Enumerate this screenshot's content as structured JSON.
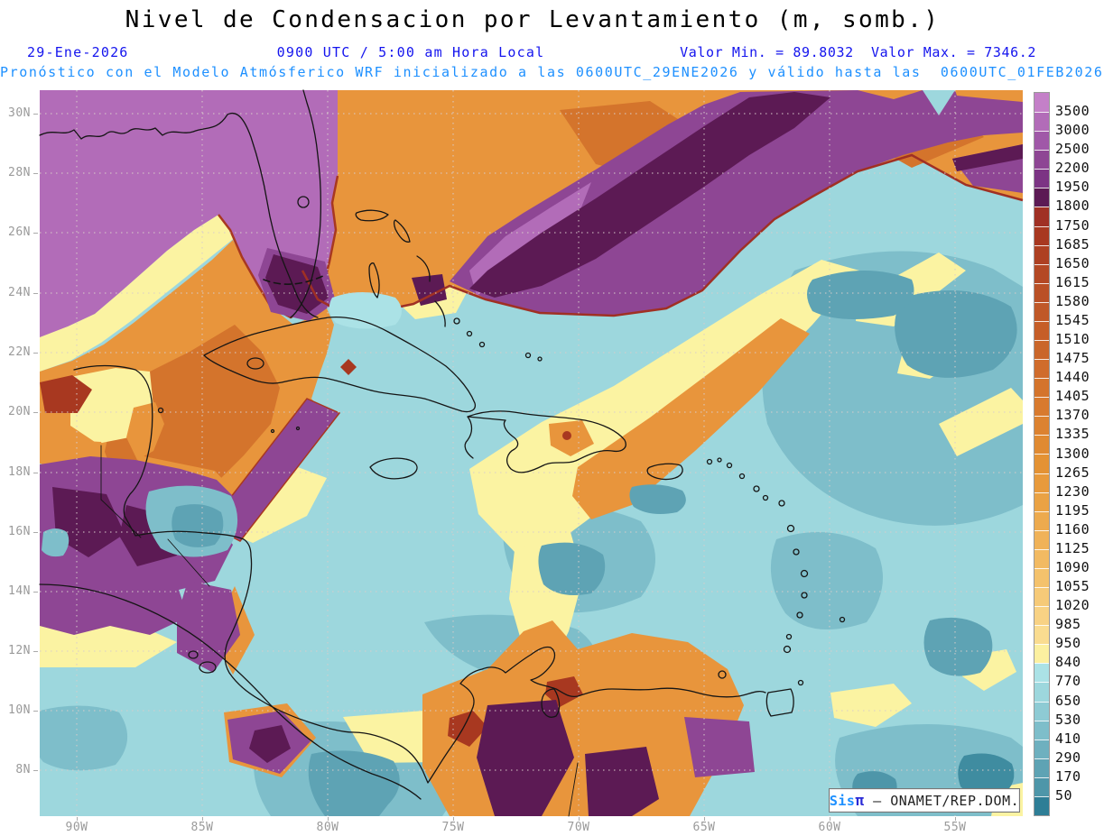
{
  "header": {
    "title": "Nivel de Condensacion por Levantamiento (m, somb.)",
    "date": "29-Ene-2026",
    "time": "0900 UTC / 5:00 am Hora Local",
    "minmax": "Valor Min. = 89.8032  Valor Max. = 7346.2",
    "forecast": "Pronóstico con el Modelo Atmósferico WRF inicializado a las 0600UTC_29ENE2026 y válido hasta las  0600UTC_01FEB2026",
    "title_color": "#000000",
    "info_color": "#1414EE",
    "forecast_color": "#1E90FF"
  },
  "axes": {
    "lat_labels": [
      "30N",
      "28N",
      "26N",
      "24N",
      "22N",
      "20N",
      "18N",
      "16N",
      "14N",
      "12N",
      "10N",
      "8N"
    ],
    "lon_labels": [
      "90W",
      "85W",
      "80W",
      "75W",
      "70W",
      "65W",
      "60W",
      "55W"
    ],
    "label_color": "#9a9a9a"
  },
  "colorbar": {
    "labels": [
      "3500",
      "3000",
      "2500",
      "2200",
      "1950",
      "1800",
      "1750",
      "1685",
      "1650",
      "1615",
      "1580",
      "1545",
      "1510",
      "1475",
      "1440",
      "1405",
      "1370",
      "1335",
      "1300",
      "1265",
      "1230",
      "1195",
      "1160",
      "1125",
      "1090",
      "1055",
      "1020",
      "985",
      "950",
      "840",
      "770",
      "650",
      "530",
      "410",
      "290",
      "170",
      "50"
    ],
    "colors": [
      "#C480C8",
      "#B26CB8",
      "#A058A8",
      "#8E4694",
      "#7C3484",
      "#5C1A54",
      "#A03024",
      "#A83820",
      "#AE4022",
      "#B44824",
      "#BA5026",
      "#C05828",
      "#C65E28",
      "#CA662A",
      "#D06C2C",
      "#D4742C",
      "#D87A2E",
      "#DC8230",
      "#E08A32",
      "#E49234",
      "#E89A3C",
      "#EAA244",
      "#EDAA4E",
      "#F0B258",
      "#F2BA62",
      "#F4C26C",
      "#F6CA78",
      "#F8D284",
      "#FADC90",
      "#FCF0A0",
      "#ABE2E6",
      "#9DD7DD",
      "#8ECBD4",
      "#7EBECA",
      "#6EB0BF",
      "#5EA3B4",
      "#4E96A9",
      "#2E7E96"
    ]
  },
  "watermark": {
    "brand": "Sis",
    "pi": "π",
    "dash": " – ",
    "org": "ONAMET/REP.DOM."
  },
  "chart_data": {
    "type": "heatmap",
    "variable": "Nivel de Condensacion por Levantamiento",
    "units": "m",
    "valor_min": 89.8032,
    "valor_max": 7346.2,
    "model": "WRF",
    "init": "0600UTC_29ENE2026",
    "valid_until": "0600UTC_01FEB2026",
    "valid_at": "0900 UTC / 5:00 am Hora Local, 29-Ene-2026",
    "lat_range_deg_n": [
      8,
      30
    ],
    "lon_range_deg_w": [
      90,
      55
    ],
    "contour_levels_m": [
      50,
      170,
      290,
      410,
      530,
      650,
      770,
      840,
      950,
      985,
      1020,
      1055,
      1090,
      1125,
      1160,
      1195,
      1230,
      1265,
      1300,
      1335,
      1370,
      1405,
      1440,
      1475,
      1510,
      1545,
      1580,
      1615,
      1650,
      1685,
      1750,
      1800,
      1950,
      2200,
      2500,
      3000,
      3500
    ],
    "palette": {
      "low_teal": "#4E96A9",
      "ocean_cyan": "#9DD7DD",
      "light_cyan": "#ABE2E6",
      "pale_yellow": "#FCF0A0",
      "orange": "#E8953C",
      "deep_orange": "#D4742C",
      "dark_red": "#A83820",
      "purple": "#8E4694",
      "light_purple": "#B26CB8",
      "dark_maroon": "#5C1A54"
    }
  }
}
